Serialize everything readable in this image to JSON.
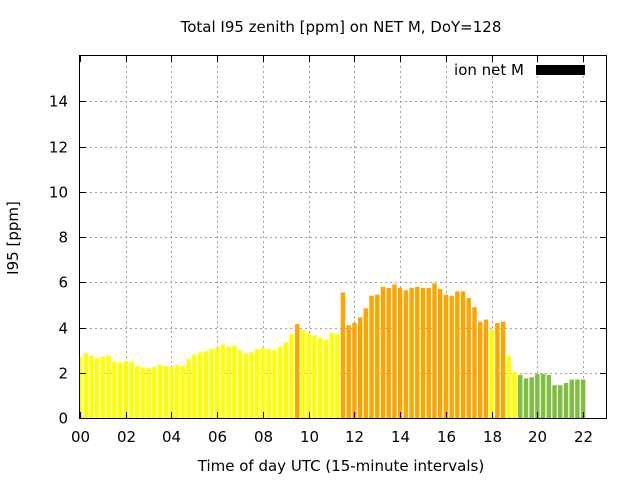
{
  "chart_data": {
    "type": "bar",
    "title": "Total I95 zenith [ppm] on NET M, DoY=128",
    "xlabel": "Time of day UTC (15-minute intervals)",
    "ylabel": "I95 [ppm]",
    "xlim": [
      0,
      23
    ],
    "ylim": [
      0,
      16
    ],
    "x_ticks": [
      "00",
      "02",
      "04",
      "06",
      "08",
      "10",
      "12",
      "14",
      "16",
      "18",
      "20",
      "22"
    ],
    "y_ticks": [
      "0",
      "2",
      "4",
      "6",
      "8",
      "10",
      "12",
      "14"
    ],
    "grid": true,
    "legend": {
      "label": "ion net M",
      "color": "#000000",
      "position": "top-right"
    },
    "interval_hours": 0.25,
    "start_time": 0,
    "colors": {
      "low": "#ffff00",
      "mid": "#ffa500",
      "high": "#7fbf3f"
    },
    "values": [
      2.7,
      2.85,
      2.75,
      2.65,
      2.7,
      2.75,
      2.5,
      2.45,
      2.5,
      2.5,
      2.3,
      2.25,
      2.2,
      2.25,
      2.35,
      2.3,
      2.25,
      2.35,
      2.3,
      2.6,
      2.8,
      2.9,
      2.95,
      3.05,
      3.1,
      3.25,
      3.15,
      3.2,
      3.0,
      2.85,
      2.9,
      3.05,
      3.1,
      3.05,
      3.0,
      3.15,
      3.35,
      3.7,
      4.15,
      3.9,
      3.75,
      3.65,
      3.55,
      3.45,
      3.75,
      3.7,
      5.55,
      4.1,
      4.2,
      4.45,
      4.85,
      5.4,
      5.45,
      5.8,
      5.75,
      5.9,
      5.75,
      5.65,
      5.75,
      5.8,
      5.75,
      5.75,
      5.95,
      5.7,
      5.45,
      5.4,
      5.6,
      5.6,
      5.3,
      4.9,
      4.25,
      4.35,
      3.9,
      4.2,
      4.25,
      2.75,
      2.05,
      1.9,
      1.75,
      1.8,
      1.95,
      1.95,
      1.9,
      1.45,
      1.45,
      1.55,
      1.7,
      1.7,
      1.7
    ],
    "categories": [
      "low",
      "low",
      "low",
      "low",
      "low",
      "low",
      "low",
      "low",
      "low",
      "low",
      "low",
      "low",
      "low",
      "low",
      "low",
      "low",
      "low",
      "low",
      "low",
      "low",
      "low",
      "low",
      "low",
      "low",
      "low",
      "low",
      "low",
      "low",
      "low",
      "low",
      "low",
      "low",
      "low",
      "low",
      "low",
      "low",
      "low",
      "low",
      "mid",
      "low",
      "low",
      "low",
      "low",
      "low",
      "low",
      "low",
      "mid",
      "mid",
      "mid",
      "mid",
      "mid",
      "mid",
      "mid",
      "mid",
      "mid",
      "mid",
      "mid",
      "mid",
      "mid",
      "mid",
      "mid",
      "mid",
      "mid",
      "mid",
      "mid",
      "mid",
      "mid",
      "mid",
      "mid",
      "mid",
      "mid",
      "mid",
      "low",
      "mid",
      "mid",
      "low",
      "low",
      "high",
      "high",
      "high",
      "high",
      "high",
      "high",
      "high",
      "high",
      "high",
      "high",
      "high",
      "high"
    ]
  }
}
